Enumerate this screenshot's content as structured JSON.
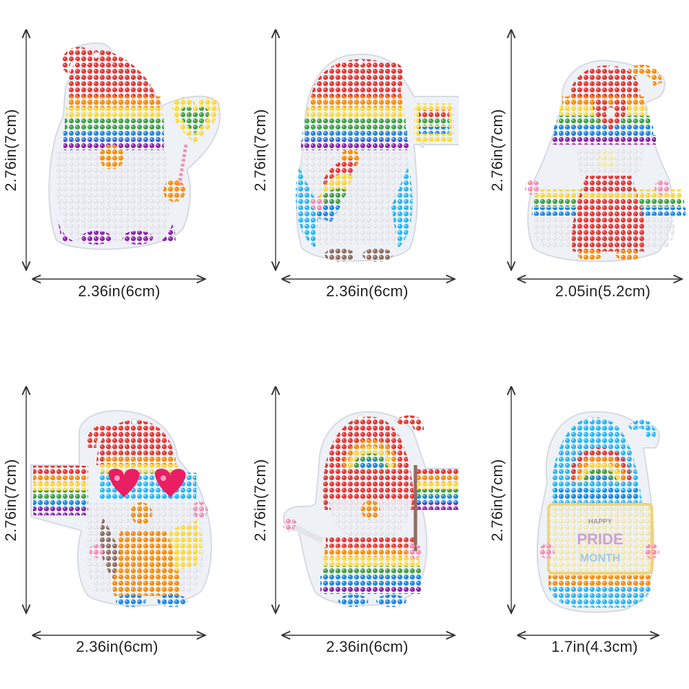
{
  "products": [
    {
      "height_label": "2.76in(7cm)",
      "width_label": "2.36in(6cm)",
      "variant": "gnome-heart-balloon",
      "palette": [
        "#e53935",
        "#fb8c00",
        "#fdd835",
        "#43a047",
        "#1e88e5",
        "#8e24aa"
      ]
    },
    {
      "height_label": "2.76in(7cm)",
      "width_label": "2.36in(6cm)",
      "variant": "gnome-flag-sign",
      "palette": [
        "#e53935",
        "#fb8c00",
        "#fdd835",
        "#43a047",
        "#1e88e5",
        "#8e24aa"
      ]
    },
    {
      "height_label": "2.76in(7cm)",
      "width_label": "2.05in(5.2cm)",
      "variant": "gnome-red-dress",
      "palette": [
        "#e53935",
        "#fb8c00",
        "#fdd835",
        "#43a047",
        "#1e88e5",
        "#8e24aa"
      ]
    },
    {
      "height_label": "2.76in(7cm)",
      "width_label": "2.36in(6cm)",
      "variant": "gnome-heart-glasses",
      "palette": [
        "#e53935",
        "#fb8c00",
        "#fdd835",
        "#43a047",
        "#1e88e5",
        "#8e24aa"
      ]
    },
    {
      "height_label": "2.76in(7cm)",
      "width_label": "2.36in(6cm)",
      "variant": "gnome-rainbow-flag",
      "palette": [
        "#e53935",
        "#fb8c00",
        "#fdd835",
        "#43a047",
        "#1e88e5",
        "#8e24aa"
      ]
    },
    {
      "height_label": "2.76in(7cm)",
      "width_label": "1.7in(4.3cm)",
      "variant": "gnome-pride-sign",
      "palette": [
        "#e53935",
        "#fb8c00",
        "#fdd835",
        "#43a047",
        "#1e88e5",
        "#8e24aa"
      ]
    }
  ],
  "sign_text": {
    "line1": "HAPPY",
    "line2": "PRIDE",
    "line3": "MONTH"
  }
}
